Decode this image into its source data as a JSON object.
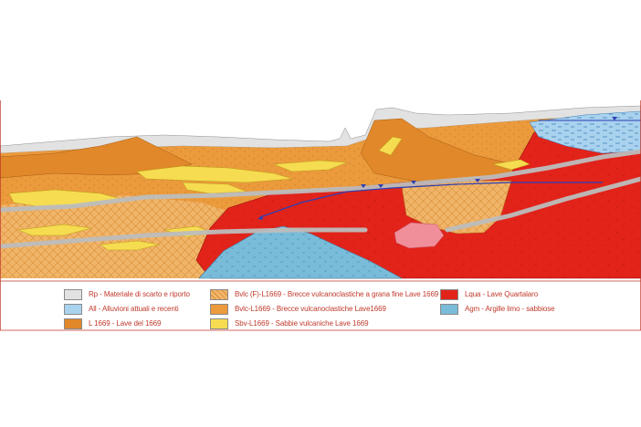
{
  "diagram": {
    "type": "geological cross-section",
    "colors": {
      "rp": "#e2e2e2",
      "all": "#a9d2ee",
      "l1669": "#e0882a",
      "bvlcF": "#f1b56a",
      "bvlc": "#eb9a3c",
      "sbv": "#f6dc50",
      "lqua": "#e2231a",
      "agm": "#79bcd9",
      "water_table": "#2d3fb5",
      "fault_band": "#bdbdbd",
      "border": "#c0392b"
    }
  },
  "legend": {
    "items": [
      {
        "key": "rp",
        "label": "Rp - Materiale di scarto e riporto",
        "icon": "gray-swatch-icon"
      },
      {
        "key": "bvlcF",
        "label": "Bvlc (F)-L1669 - Brecce vulcanoclastiche a grana fine Lave 1669",
        "icon": "hatched-orange-swatch-icon"
      },
      {
        "key": "lqua",
        "label": "Lqua - Lave Quartalaro",
        "icon": "red-swatch-icon"
      },
      {
        "key": "all",
        "label": "All - Alluvioni attuali e recenti",
        "icon": "blue-swatch-icon"
      },
      {
        "key": "bvlc",
        "label": "Bvlc-L1669 - Brecce vulcanoclastiche Lave1669",
        "icon": "orange-swatch-icon"
      },
      {
        "key": "agm",
        "label": "Agm - Argille limo - sabbiose",
        "icon": "steel-blue-swatch-icon"
      },
      {
        "key": "l1669",
        "label": "L 1669 - Lave del 1669",
        "icon": "dark-orange-swatch-icon"
      },
      {
        "key": "sbv",
        "label": "Sbv-L1669 - Sabbie vulcaniche Lave 1669",
        "icon": "yellow-swatch-icon"
      }
    ]
  }
}
